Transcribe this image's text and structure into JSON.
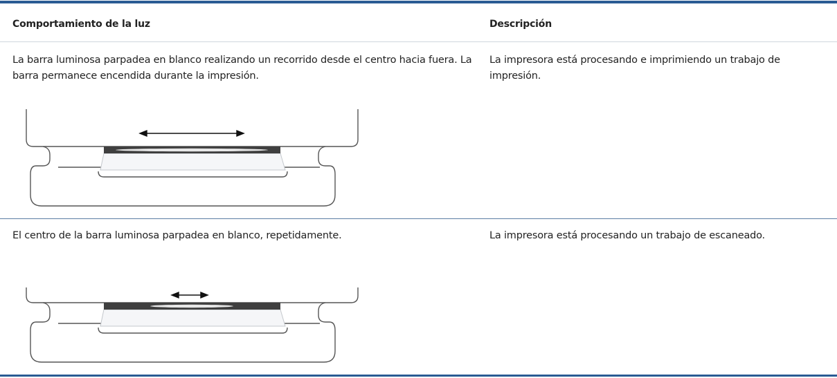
{
  "table": {
    "headers": [
      "Comportamiento de la luz",
      "Descripción"
    ],
    "rows": [
      [
        "La barra luminosa parpadea en blanco realizando un recorrido desde el centro hacia fuera. La barra permanece encendida durante la impresión.",
        "La impresora está procesando e imprimiendo un trabajo de impresión."
      ],
      [
        "El centro de la barra luminosa parpadea en blanco, repetidamente.",
        "La impresora está procesando un trabajo de escaneado."
      ]
    ]
  }
}
